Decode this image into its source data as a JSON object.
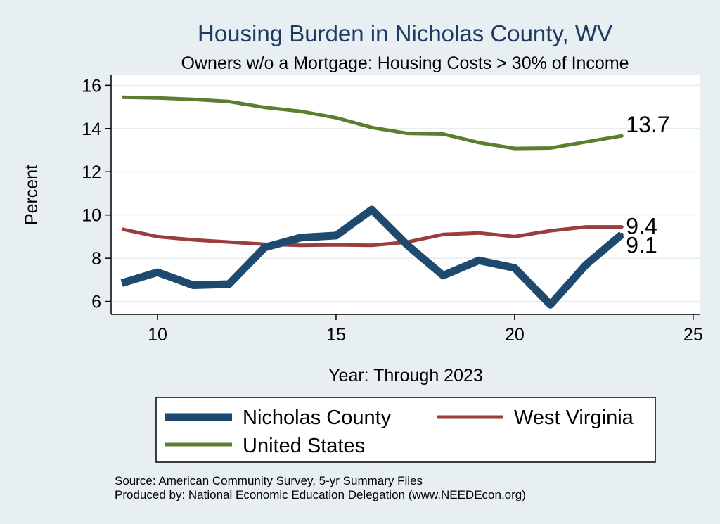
{
  "chart_data": {
    "type": "line",
    "title": "Housing Burden in Nicholas County, WV",
    "subtitle": "Owners w/o a Mortgage: Housing Costs > 30% of Income",
    "xlabel": "Year: Through 2023",
    "ylabel": "Percent",
    "xlim": [
      8.7,
      25.2
    ],
    "ylim": [
      5.4,
      16.5
    ],
    "x_ticks": [
      10,
      15,
      20,
      25
    ],
    "y_ticks": [
      6,
      8,
      10,
      12,
      14,
      16
    ],
    "x_tick_labels": [
      "10",
      "15",
      "20",
      "25"
    ],
    "y_tick_labels": [
      "6",
      "8",
      "10",
      "12",
      "14",
      "16"
    ],
    "grid": true,
    "x": [
      9,
      10,
      11,
      12,
      13,
      14,
      15,
      16,
      17,
      18,
      19,
      20,
      21,
      22,
      23
    ],
    "series": [
      {
        "name": "Nicholas County",
        "color": "#1d4a6e",
        "values": [
          6.85,
          7.35,
          6.75,
          6.8,
          8.5,
          8.95,
          9.05,
          10.25,
          8.6,
          7.2,
          7.9,
          7.55,
          5.85,
          7.7,
          9.1
        ],
        "end_label": "9.1"
      },
      {
        "name": "West Virginia",
        "color": "#993d3d",
        "values": [
          9.35,
          9.0,
          8.85,
          8.75,
          8.65,
          8.6,
          8.62,
          8.6,
          8.75,
          9.1,
          9.17,
          9.0,
          9.27,
          9.45,
          9.45
        ],
        "end_label": "9.4"
      },
      {
        "name": "United States",
        "color": "#5b7f2f",
        "values": [
          15.45,
          15.42,
          15.35,
          15.25,
          14.98,
          14.8,
          14.5,
          14.05,
          13.78,
          13.75,
          13.35,
          13.08,
          13.1,
          13.38,
          13.66
        ],
        "end_label": "13.7"
      }
    ],
    "legend": {
      "placement": "bottom",
      "entries": [
        "Nicholas County",
        "West Virginia",
        "United States"
      ]
    },
    "notes": [
      "Source: American Community Survey, 5-yr Summary Files",
      "Produced by: National Economic Education Delegation (www.NEEDEcon.org)"
    ]
  }
}
